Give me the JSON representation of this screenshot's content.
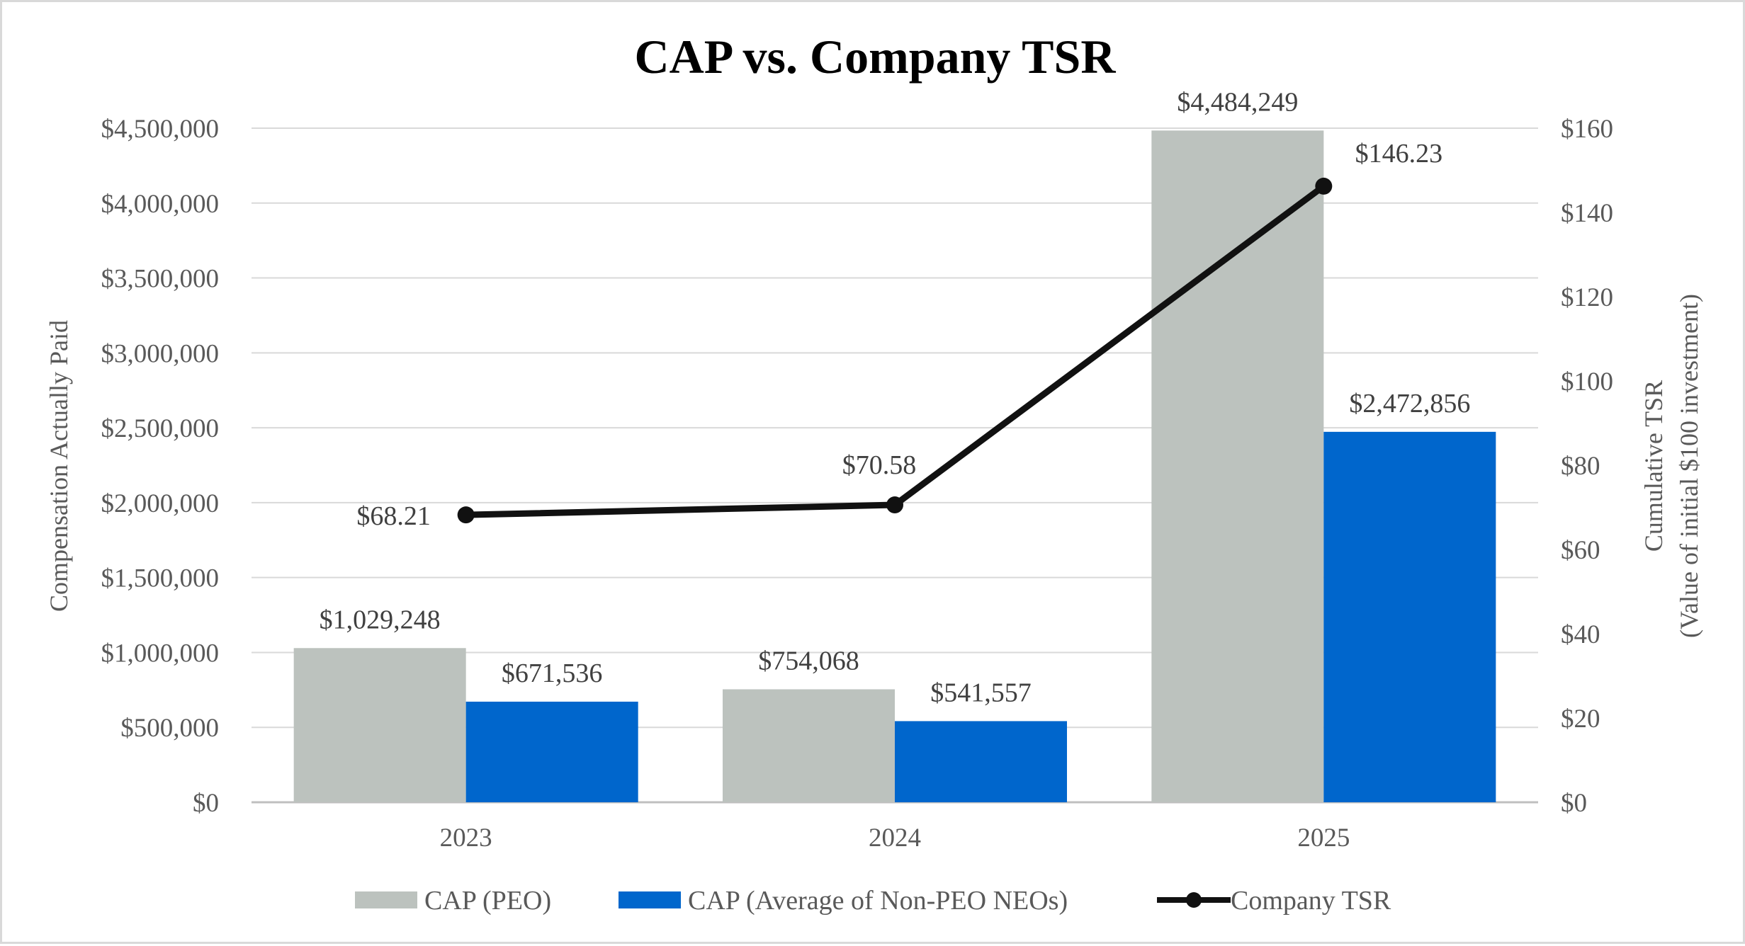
{
  "chart_data": {
    "type": "bar",
    "title": "CAP vs. Company TSR",
    "categories": [
      "2023",
      "2024",
      "2025"
    ],
    "series": [
      {
        "name": "CAP (PEO)",
        "kind": "bar",
        "axis": "left",
        "color": "#bcc2be",
        "values": [
          1029248,
          754068,
          4484249
        ],
        "labels": [
          "$1,029,248",
          "$754,068",
          "$4,484,249"
        ]
      },
      {
        "name": "CAP (Average of Non-PEO NEOs)",
        "kind": "bar",
        "axis": "left",
        "color": "#0066cc",
        "values": [
          671536,
          541557,
          2472856
        ],
        "labels": [
          "$671,536",
          "$541,557",
          "$2,472,856"
        ]
      },
      {
        "name": "Company TSR",
        "kind": "line",
        "axis": "right",
        "color": "#111111",
        "values": [
          68.21,
          70.58,
          146.23
        ],
        "labels": [
          "$68.21",
          "$70.58",
          "$146.23"
        ]
      }
    ],
    "y_left": {
      "label": "Compensation Actually Paid",
      "ylim": [
        0,
        4500000
      ],
      "ticks": [
        0,
        500000,
        1000000,
        1500000,
        2000000,
        2500000,
        3000000,
        3500000,
        4000000,
        4500000
      ],
      "tick_labels": [
        "$0",
        "$500,000",
        "$1,000,000",
        "$1,500,000",
        "$2,000,000",
        "$2,500,000",
        "$3,000,000",
        "$3,500,000",
        "$4,000,000",
        "$4,500,000"
      ]
    },
    "y_right": {
      "label_line1": "Cumulative TSR",
      "label_line2": "(Value of initial $100 investment)",
      "ylim": [
        0,
        160
      ],
      "ticks": [
        0,
        20,
        40,
        60,
        80,
        100,
        120,
        140,
        160
      ],
      "tick_labels": [
        "$0",
        "$20",
        "$40",
        "$60",
        "$80",
        "$100",
        "$120",
        "$140",
        "$160"
      ]
    },
    "grid": true,
    "legend_position": "bottom"
  }
}
